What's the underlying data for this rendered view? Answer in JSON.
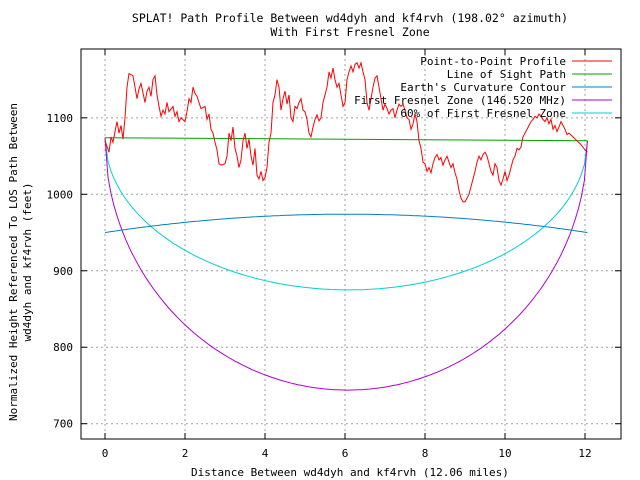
{
  "chart_data": {
    "type": "line",
    "title": "SPLAT! Path Profile Between wd4dyh and kf4rvh (198.02° azimuth)",
    "subtitle": "With First Fresnel Zone",
    "xlabel": "Distance Between wd4dyh and kf4rvh (12.06 miles)",
    "ylabel_lines": [
      "Normalized Height Referenced To LOS Path Between",
      "wd4dyh and kf4rvh (feet)"
    ],
    "xlim": [
      -0.6,
      12.9
    ],
    "ylim": [
      680,
      1190
    ],
    "xticks": [
      0,
      2,
      4,
      6,
      8,
      10,
      12
    ],
    "xtick_labels": [
      "0",
      "2",
      "4",
      "6",
      "8",
      "10",
      "12"
    ],
    "yticks": [
      700,
      800,
      900,
      1000,
      1100
    ],
    "ytick_labels": [
      "700",
      "800",
      "900",
      "1000",
      "1100"
    ],
    "grid": true,
    "legend_position": "top-right",
    "series": [
      {
        "name": "Point-to-Point Profile",
        "color": "#ff0000",
        "points": [
          [
            0,
            1070
          ],
          [
            0.1,
            1055
          ],
          [
            0.15,
            1075
          ],
          [
            0.2,
            1068
          ],
          [
            0.25,
            1082
          ],
          [
            0.3,
            1095
          ],
          [
            0.35,
            1080
          ],
          [
            0.4,
            1090
          ],
          [
            0.45,
            1072
          ],
          [
            0.5,
            1100
          ],
          [
            0.55,
            1140
          ],
          [
            0.6,
            1158
          ],
          [
            0.7,
            1155
          ],
          [
            0.75,
            1140
          ],
          [
            0.8,
            1125
          ],
          [
            0.85,
            1138
          ],
          [
            0.9,
            1145
          ],
          [
            1.0,
            1120
          ],
          [
            1.05,
            1135
          ],
          [
            1.1,
            1140
          ],
          [
            1.15,
            1128
          ],
          [
            1.2,
            1150
          ],
          [
            1.25,
            1155
          ],
          [
            1.3,
            1130
          ],
          [
            1.35,
            1115
          ],
          [
            1.4,
            1102
          ],
          [
            1.45,
            1110
          ],
          [
            1.5,
            1105
          ],
          [
            1.55,
            1120
          ],
          [
            1.6,
            1108
          ],
          [
            1.7,
            1115
          ],
          [
            1.75,
            1102
          ],
          [
            1.8,
            1108
          ],
          [
            1.85,
            1095
          ],
          [
            1.9,
            1100
          ],
          [
            2.0,
            1095
          ],
          [
            2.05,
            1108
          ],
          [
            2.1,
            1125
          ],
          [
            2.15,
            1120
          ],
          [
            2.2,
            1140
          ],
          [
            2.25,
            1132
          ],
          [
            2.3,
            1128
          ],
          [
            2.35,
            1120
          ],
          [
            2.4,
            1112
          ],
          [
            2.5,
            1115
          ],
          [
            2.55,
            1098
          ],
          [
            2.6,
            1105
          ],
          [
            2.65,
            1085
          ],
          [
            2.7,
            1080
          ],
          [
            2.75,
            1068
          ],
          [
            2.8,
            1058
          ],
          [
            2.85,
            1040
          ],
          [
            2.9,
            1038
          ],
          [
            3.0,
            1040
          ],
          [
            3.05,
            1050
          ],
          [
            3.1,
            1080
          ],
          [
            3.15,
            1070
          ],
          [
            3.2,
            1088
          ],
          [
            3.25,
            1060
          ],
          [
            3.3,
            1050
          ],
          [
            3.35,
            1035
          ],
          [
            3.4,
            1045
          ],
          [
            3.45,
            1070
          ],
          [
            3.5,
            1080
          ],
          [
            3.55,
            1060
          ],
          [
            3.6,
            1072
          ],
          [
            3.65,
            1050
          ],
          [
            3.7,
            1038
          ],
          [
            3.75,
            1060
          ],
          [
            3.8,
            1025
          ],
          [
            3.85,
            1020
          ],
          [
            3.9,
            1030
          ],
          [
            3.95,
            1018
          ],
          [
            4.0,
            1022
          ],
          [
            4.05,
            1035
          ],
          [
            4.1,
            1068
          ],
          [
            4.15,
            1080
          ],
          [
            4.2,
            1120
          ],
          [
            4.25,
            1130
          ],
          [
            4.3,
            1150
          ],
          [
            4.35,
            1140
          ],
          [
            4.4,
            1110
          ],
          [
            4.45,
            1125
          ],
          [
            4.5,
            1135
          ],
          [
            4.55,
            1118
          ],
          [
            4.6,
            1130
          ],
          [
            4.65,
            1100
          ],
          [
            4.7,
            1095
          ],
          [
            4.75,
            1115
          ],
          [
            4.8,
            1112
          ],
          [
            4.85,
            1120
          ],
          [
            4.9,
            1125
          ],
          [
            4.95,
            1110
          ],
          [
            5.0,
            1108
          ],
          [
            5.05,
            1098
          ],
          [
            5.1,
            1080
          ],
          [
            5.15,
            1075
          ],
          [
            5.2,
            1088
          ],
          [
            5.25,
            1098
          ],
          [
            5.3,
            1104
          ],
          [
            5.35,
            1096
          ],
          [
            5.4,
            1100
          ],
          [
            5.45,
            1120
          ],
          [
            5.5,
            1130
          ],
          [
            5.55,
            1140
          ],
          [
            5.6,
            1160
          ],
          [
            5.65,
            1152
          ],
          [
            5.7,
            1165
          ],
          [
            5.75,
            1150
          ],
          [
            5.8,
            1140
          ],
          [
            5.85,
            1145
          ],
          [
            5.9,
            1130
          ],
          [
            5.95,
            1115
          ],
          [
            6.0,
            1120
          ],
          [
            6.05,
            1150
          ],
          [
            6.1,
            1160
          ],
          [
            6.15,
            1168
          ],
          [
            6.2,
            1160
          ],
          [
            6.25,
            1170
          ],
          [
            6.3,
            1172
          ],
          [
            6.35,
            1165
          ],
          [
            6.4,
            1172
          ],
          [
            6.45,
            1160
          ],
          [
            6.5,
            1150
          ],
          [
            6.55,
            1120
          ],
          [
            6.6,
            1110
          ],
          [
            6.65,
            1125
          ],
          [
            6.7,
            1140
          ],
          [
            6.75,
            1152
          ],
          [
            6.8,
            1155
          ],
          [
            6.85,
            1140
          ],
          [
            6.9,
            1125
          ],
          [
            6.95,
            1110
          ],
          [
            7.0,
            1118
          ],
          [
            7.05,
            1112
          ],
          [
            7.1,
            1105
          ],
          [
            7.15,
            1110
          ],
          [
            7.2,
            1112
          ],
          [
            7.25,
            1100
          ],
          [
            7.3,
            1110
          ],
          [
            7.35,
            1118
          ],
          [
            7.4,
            1115
          ],
          [
            7.45,
            1118
          ],
          [
            7.5,
            1110
          ],
          [
            7.55,
            1100
          ],
          [
            7.6,
            1098
          ],
          [
            7.65,
            1085
          ],
          [
            7.7,
            1092
          ],
          [
            7.75,
            1105
          ],
          [
            7.8,
            1095
          ],
          [
            7.85,
            1070
          ],
          [
            7.9,
            1060
          ],
          [
            7.95,
            1042
          ],
          [
            8.0,
            1040
          ],
          [
            8.05,
            1030
          ],
          [
            8.1,
            1035
          ],
          [
            8.15,
            1028
          ],
          [
            8.2,
            1040
          ],
          [
            8.25,
            1048
          ],
          [
            8.3,
            1052
          ],
          [
            8.35,
            1045
          ],
          [
            8.4,
            1048
          ],
          [
            8.45,
            1038
          ],
          [
            8.5,
            1045
          ],
          [
            8.55,
            1050
          ],
          [
            8.6,
            1042
          ],
          [
            8.65,
            1035
          ],
          [
            8.7,
            1040
          ],
          [
            8.75,
            1028
          ],
          [
            8.8,
            1020
          ],
          [
            8.85,
            1005
          ],
          [
            8.9,
            995
          ],
          [
            8.95,
            990
          ],
          [
            9.0,
            990
          ],
          [
            9.05,
            995
          ],
          [
            9.1,
            1000
          ],
          [
            9.15,
            1010
          ],
          [
            9.2,
            1020
          ],
          [
            9.25,
            1030
          ],
          [
            9.3,
            1042
          ],
          [
            9.35,
            1050
          ],
          [
            9.4,
            1045
          ],
          [
            9.45,
            1052
          ],
          [
            9.5,
            1055
          ],
          [
            9.55,
            1050
          ],
          [
            9.6,
            1040
          ],
          [
            9.65,
            1030
          ],
          [
            9.7,
            1025
          ],
          [
            9.75,
            1040
          ],
          [
            9.8,
            1035
          ],
          [
            9.85,
            1018
          ],
          [
            9.9,
            1012
          ],
          [
            9.95,
            1020
          ],
          [
            10.0,
            1030
          ],
          [
            10.05,
            1018
          ],
          [
            10.1,
            1025
          ],
          [
            10.15,
            1035
          ],
          [
            10.2,
            1045
          ],
          [
            10.25,
            1050
          ],
          [
            10.3,
            1060
          ],
          [
            10.35,
            1058
          ],
          [
            10.4,
            1062
          ],
          [
            10.45,
            1075
          ],
          [
            10.5,
            1080
          ],
          [
            10.55,
            1085
          ],
          [
            10.6,
            1090
          ],
          [
            10.65,
            1095
          ],
          [
            10.7,
            1098
          ],
          [
            10.75,
            1102
          ],
          [
            10.8,
            1100
          ],
          [
            10.85,
            1105
          ],
          [
            10.9,
            1102
          ],
          [
            10.95,
            1098
          ],
          [
            11.0,
            1095
          ],
          [
            11.05,
            1100
          ],
          [
            11.1,
            1092
          ],
          [
            11.15,
            1098
          ],
          [
            11.2,
            1085
          ],
          [
            11.25,
            1090
          ],
          [
            11.3,
            1082
          ],
          [
            11.35,
            1088
          ],
          [
            11.4,
            1095
          ],
          [
            11.45,
            1090
          ],
          [
            11.5,
            1085
          ],
          [
            11.55,
            1078
          ],
          [
            11.6,
            1080
          ],
          [
            11.7,
            1075
          ],
          [
            11.8,
            1070
          ],
          [
            11.9,
            1065
          ],
          [
            12.0,
            1058
          ],
          [
            12.06,
            1055
          ]
        ]
      },
      {
        "name": "Line of Sight Path",
        "color": "#00a000",
        "points": [
          [
            0,
            1074
          ],
          [
            12.06,
            1070
          ]
        ]
      },
      {
        "name": "Earth's Curvature Contour",
        "color": "#0080c0",
        "curve": "parabola",
        "x_range": [
          0,
          12.06
        ],
        "end_value": 950,
        "mid_value": 974
      },
      {
        "name": "First Fresnel Zone (146.520 MHz)",
        "color": "#b000d0",
        "curve": "ellipse",
        "x_range": [
          0,
          12.06
        ],
        "top_start": 1074,
        "top_end": 1070,
        "max_depth": 328
      },
      {
        "name": "60% of First Fresnel Zone",
        "color": "#00d0d0",
        "curve": "ellipse",
        "x_range": [
          0,
          12.06
        ],
        "top_start": 1074,
        "top_end": 1070,
        "max_depth": 197
      }
    ]
  }
}
